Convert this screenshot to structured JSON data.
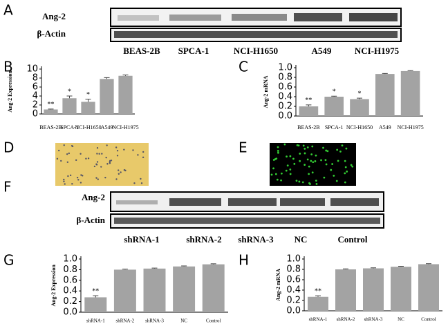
{
  "figure": {
    "panels": [
      "A",
      "B",
      "C",
      "D",
      "E",
      "F",
      "G",
      "H"
    ],
    "blot_a": {
      "rows": [
        "Ang-2",
        "β-Actin"
      ],
      "lanes": [
        "BEAS-2B",
        "SPCA-1",
        "NCI-H1650",
        "A549",
        "NCI-H1975"
      ]
    },
    "blot_f": {
      "rows": [
        "Ang-2",
        "β-Actin"
      ],
      "lanes": [
        "shRNA-1",
        "shRNA-2",
        "shRNA-3",
        "NC",
        "Control"
      ]
    }
  },
  "chart_data": [
    {
      "type": "bar",
      "ylabel": "Ang-2 Expression",
      "color": "#a3a3a3",
      "categories": [
        "BEAS-2B",
        "SPCA-1",
        "NCI-H1650",
        "A549",
        "NCI-H1975"
      ],
      "values": [
        1.0,
        3.5,
        2.7,
        7.8,
        8.5
      ],
      "errors": [
        0.1,
        0.5,
        0.6,
        0.3,
        0.2
      ],
      "annotations": [
        "**",
        "*",
        "*",
        null,
        null
      ],
      "ylim": [
        0,
        10
      ],
      "yticks": [
        0,
        2,
        4,
        6,
        8,
        10
      ]
    },
    {
      "type": "bar",
      "ylabel": "Ang-2 mRNA",
      "color": "#a3a3a3",
      "categories": [
        "BEAS-2B",
        "SPCA-1",
        "NCI-H1650",
        "A549",
        "NCI-H1975"
      ],
      "values": [
        0.2,
        0.4,
        0.35,
        0.87,
        0.93
      ],
      "errors": [
        0.03,
        0.01,
        0.02,
        0.01,
        0.01
      ],
      "annotations": [
        "**",
        "*",
        "*",
        null,
        null
      ],
      "ylim": [
        0,
        1.0
      ],
      "yticks": [
        {
          "value": 0,
          "label": "0.0"
        },
        {
          "value": 0.2,
          "label": "0.2"
        },
        {
          "value": 0.4,
          "label": "0.4"
        },
        {
          "value": 0.6,
          "label": "0.6"
        },
        {
          "value": 0.8,
          "label": "0.8"
        },
        {
          "value": 1,
          "label": "1.0"
        }
      ]
    },
    {
      "type": "bar",
      "ylabel": "Ang-2 Expression",
      "color": "#a3a3a3",
      "categories": [
        "shRNA-1",
        "shRNA-2",
        "shRNA-3",
        "NC",
        "Control"
      ],
      "values": [
        0.28,
        0.8,
        0.82,
        0.86,
        0.9
      ],
      "errors": [
        0.03,
        0.01,
        0.01,
        0.01,
        0.01
      ],
      "annotations": [
        "**",
        null,
        null,
        null,
        null
      ],
      "ylim": [
        0,
        1.0
      ],
      "yticks": [
        {
          "value": 0,
          "label": "0.0"
        },
        {
          "value": 0.2,
          "label": "0.2"
        },
        {
          "value": 0.4,
          "label": "0.4"
        },
        {
          "value": 0.6,
          "label": "0.6"
        },
        {
          "value": 0.8,
          "label": "0.8"
        },
        {
          "value": 1,
          "label": "1.0"
        }
      ]
    },
    {
      "type": "bar",
      "ylabel": "Ang-2 mRNA",
      "color": "#a3a3a3",
      "categories": [
        "shRNA-1",
        "shRNA-2",
        "shRNA-3",
        "NC",
        "Control"
      ],
      "values": [
        0.27,
        0.8,
        0.82,
        0.85,
        0.9
      ],
      "errors": [
        0.02,
        0.01,
        0.01,
        0.01,
        0.01
      ],
      "annotations": [
        "**",
        null,
        null,
        null,
        null
      ],
      "ylim": [
        0,
        1.0
      ],
      "yticks": [
        {
          "value": 0,
          "label": "0.0"
        },
        {
          "value": 0.2,
          "label": "0.2"
        },
        {
          "value": 0.4,
          "label": "0.4"
        },
        {
          "value": 0.6,
          "label": "0.6"
        },
        {
          "value": 0.8,
          "label": "0.8"
        },
        {
          "value": 1,
          "label": "1.0"
        }
      ]
    }
  ]
}
